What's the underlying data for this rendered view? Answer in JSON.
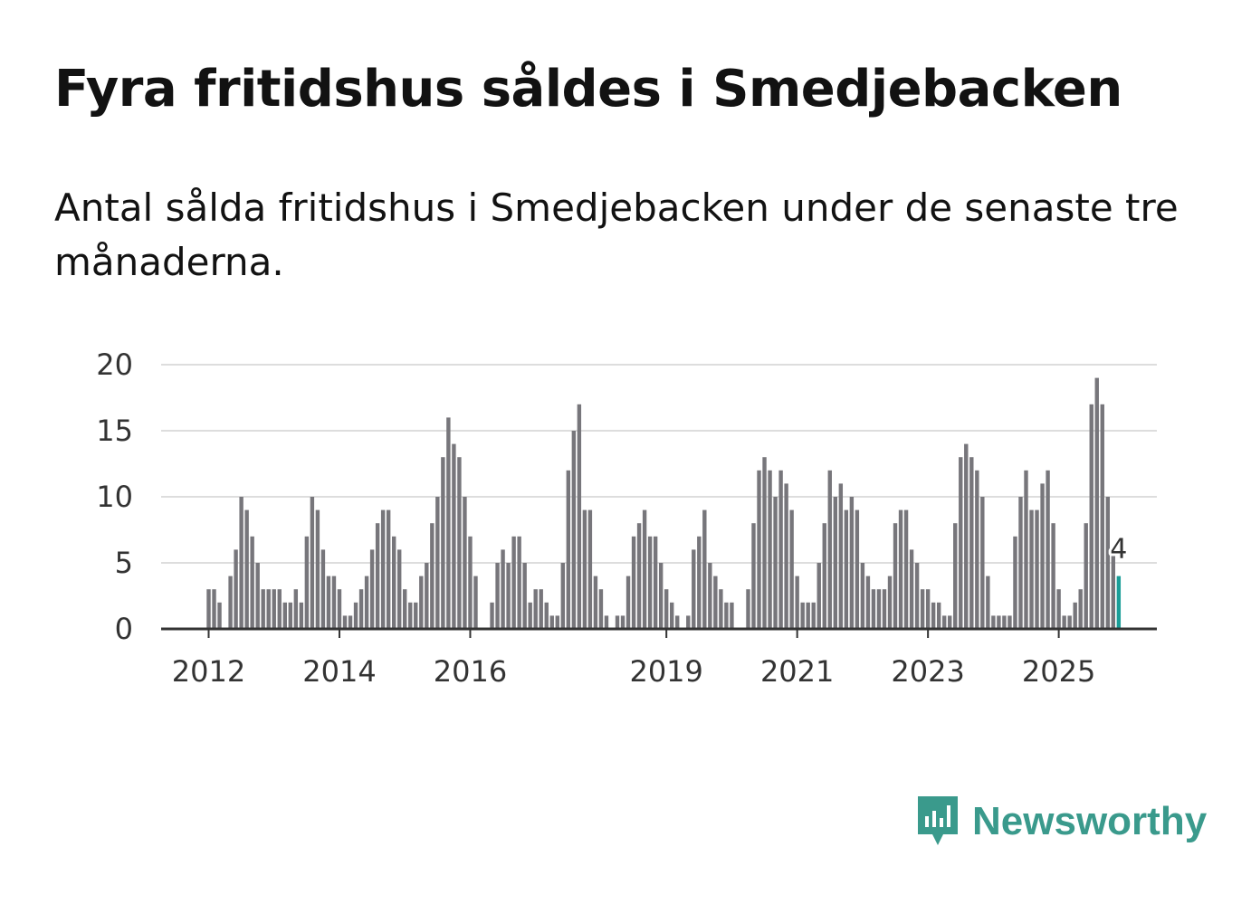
{
  "chart_data": {
    "type": "bar",
    "title": "Fyra fritidshus såldes i Smedjebacken",
    "subtitle": "Antal sålda fritidshus i Smedjebacken under de senaste tre månaderna.",
    "xlabel": "",
    "ylabel": "",
    "ylim": [
      0,
      20
    ],
    "yticks": [
      0,
      5,
      10,
      15,
      20
    ],
    "xtick_labels": [
      {
        "label": "2012",
        "index": 0
      },
      {
        "label": "2014",
        "index": 24
      },
      {
        "label": "2016",
        "index": 48
      },
      {
        "label": "2019",
        "index": 84
      },
      {
        "label": "2021",
        "index": 108
      },
      {
        "label": "2023",
        "index": 132
      },
      {
        "label": "2025",
        "index": 156
      }
    ],
    "values": [
      3,
      3,
      2,
      0,
      4,
      6,
      10,
      9,
      7,
      5,
      3,
      3,
      3,
      3,
      2,
      2,
      3,
      2,
      7,
      10,
      9,
      6,
      4,
      4,
      3,
      1,
      1,
      2,
      3,
      4,
      6,
      8,
      9,
      9,
      7,
      6,
      3,
      2,
      2,
      4,
      5,
      8,
      10,
      13,
      16,
      14,
      13,
      10,
      7,
      4,
      0,
      0,
      2,
      5,
      6,
      5,
      7,
      7,
      5,
      2,
      3,
      3,
      2,
      1,
      1,
      5,
      12,
      15,
      17,
      9,
      9,
      4,
      3,
      1,
      0,
      1,
      1,
      4,
      7,
      8,
      9,
      7,
      7,
      5,
      3,
      2,
      1,
      0,
      1,
      6,
      7,
      9,
      5,
      4,
      3,
      2,
      2,
      0,
      0,
      3,
      8,
      12,
      13,
      12,
      10,
      12,
      11,
      9,
      4,
      2,
      2,
      2,
      5,
      8,
      12,
      10,
      11,
      9,
      10,
      9,
      5,
      4,
      3,
      3,
      3,
      4,
      8,
      9,
      9,
      6,
      5,
      3,
      3,
      2,
      2,
      1,
      1,
      8,
      13,
      14,
      13,
      12,
      10,
      4,
      1,
      1,
      1,
      1,
      7,
      10,
      12,
      9,
      9,
      11,
      12,
      8,
      3,
      1,
      1,
      2,
      3,
      8,
      17,
      19,
      17,
      10,
      6,
      4
    ],
    "highlight_label": "4",
    "bar_color": "#77767b",
    "highlight_color": "#1a9e98",
    "grid_color": "#dddddd",
    "axis_color": "#333333"
  },
  "brand": {
    "name": "Newsworthy",
    "color": "#3a9a8c"
  }
}
